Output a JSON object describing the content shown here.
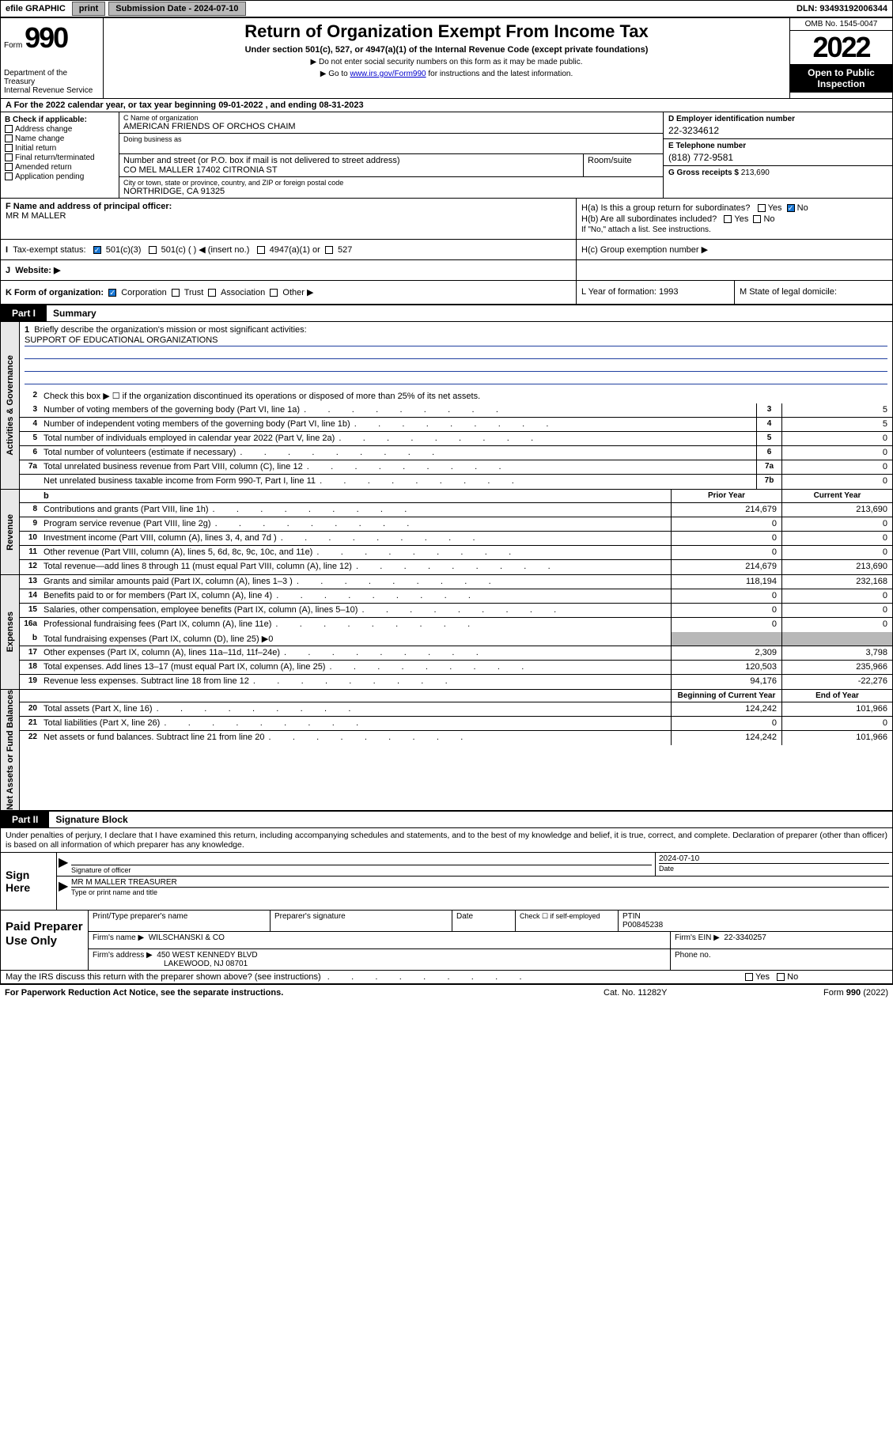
{
  "topbar": {
    "efile": "efile GRAPHIC",
    "print": "print",
    "sub_label": "Submission Date - 2024-07-10",
    "dln": "DLN: 93493192006344"
  },
  "header": {
    "form_word": "Form",
    "form_num": "990",
    "dept": "Department of the Treasury",
    "irs": "Internal Revenue Service",
    "title": "Return of Organization Exempt From Income Tax",
    "subtitle": "Under section 501(c), 527, or 4947(a)(1) of the Internal Revenue Code (except private foundations)",
    "note1": "▶ Do not enter social security numbers on this form as it may be made public.",
    "note2_pre": "▶ Go to ",
    "note2_link": "www.irs.gov/Form990",
    "note2_post": " for instructions and the latest information.",
    "omb": "OMB No. 1545-0047",
    "year": "2022",
    "open": "Open to Public Inspection"
  },
  "a_line": "A For the 2022 calendar year, or tax year beginning 09-01-2022   , and ending 08-31-2023",
  "box_b": {
    "header": "B Check if applicable:",
    "addr": "Address change",
    "name": "Name change",
    "init": "Initial return",
    "final": "Final return/terminated",
    "amend": "Amended return",
    "app": "Application pending"
  },
  "box_c": {
    "name_hint": "C Name of organization",
    "name": "AMERICAN FRIENDS OF ORCHOS CHAIM",
    "dba_hint": "Doing business as",
    "dba": "",
    "addr_hint": "Number and street (or P.O. box if mail is not delivered to street address)",
    "room_hint": "Room/suite",
    "addr": "CO MEL MALLER 17402 CITRONIA ST",
    "city_hint": "City or town, state or province, country, and ZIP or foreign postal code",
    "city": "NORTHRIDGE, CA  91325"
  },
  "box_d": {
    "label": "D Employer identification number",
    "val": "22-3234612"
  },
  "box_e": {
    "label": "E Telephone number",
    "val": "(818) 772-9581"
  },
  "box_g": {
    "label": "G Gross receipts $",
    "val": "213,690"
  },
  "box_f": {
    "label": "F  Name and address of principal officer:",
    "val": "MR M MALLER"
  },
  "box_h": {
    "ha": "H(a)  Is this a group return for subordinates?",
    "hb": "H(b)  Are all subordinates included?",
    "hb_note": "If \"No,\" attach a list. See instructions.",
    "hc": "H(c)  Group exemption number ▶",
    "yes": "Yes",
    "no": "No"
  },
  "box_i": {
    "label": "Tax-exempt status:",
    "c3": "501(c)(3)",
    "c": "501(c) (   ) ◀ (insert no.)",
    "a4947": "4947(a)(1) or",
    "s527": "527"
  },
  "box_j": {
    "label": "Website: ▶",
    "val": ""
  },
  "box_k": {
    "label": "K Form of organization:",
    "corp": "Corporation",
    "trust": "Trust",
    "assoc": "Association",
    "other": "Other ▶"
  },
  "box_l": {
    "label": "L Year of formation: 1993"
  },
  "box_m": {
    "label": "M State of legal domicile:"
  },
  "part1": {
    "num": "Part I",
    "title": "Summary"
  },
  "mission": {
    "q": "Briefly describe the organization's mission or most significant activities:",
    "a": "SUPPORT OF EDUCATIONAL ORGANIZATIONS"
  },
  "line2": "Check this box ▶ ☐  if the organization discontinued its operations or disposed of more than 25% of its net assets.",
  "lines_gov": [
    {
      "n": "3",
      "t": "Number of voting members of the governing body (Part VI, line 1a)",
      "box": "3",
      "v": "5"
    },
    {
      "n": "4",
      "t": "Number of independent voting members of the governing body (Part VI, line 1b)",
      "box": "4",
      "v": "5"
    },
    {
      "n": "5",
      "t": "Total number of individuals employed in calendar year 2022 (Part V, line 2a)",
      "box": "5",
      "v": "0"
    },
    {
      "n": "6",
      "t": "Total number of volunteers (estimate if necessary)",
      "box": "6",
      "v": "0"
    },
    {
      "n": "7a",
      "t": "Total unrelated business revenue from Part VIII, column (C), line 12",
      "box": "7a",
      "v": "0"
    },
    {
      "n": "",
      "t": "Net unrelated business taxable income from Form 990-T, Part I, line 11",
      "box": "7b",
      "v": "0"
    }
  ],
  "col_headers": {
    "b": "b",
    "prior": "Prior Year",
    "current": "Current Year",
    "boy": "Beginning of Current Year",
    "eoy": "End of Year"
  },
  "lines_rev": [
    {
      "n": "8",
      "t": "Contributions and grants (Part VIII, line 1h)",
      "p": "214,679",
      "c": "213,690"
    },
    {
      "n": "9",
      "t": "Program service revenue (Part VIII, line 2g)",
      "p": "0",
      "c": "0"
    },
    {
      "n": "10",
      "t": "Investment income (Part VIII, column (A), lines 3, 4, and 7d )",
      "p": "0",
      "c": "0"
    },
    {
      "n": "11",
      "t": "Other revenue (Part VIII, column (A), lines 5, 6d, 8c, 9c, 10c, and 11e)",
      "p": "0",
      "c": "0"
    },
    {
      "n": "12",
      "t": "Total revenue—add lines 8 through 11 (must equal Part VIII, column (A), line 12)",
      "p": "214,679",
      "c": "213,690"
    }
  ],
  "lines_exp": [
    {
      "n": "13",
      "t": "Grants and similar amounts paid (Part IX, column (A), lines 1–3 )",
      "p": "118,194",
      "c": "232,168"
    },
    {
      "n": "14",
      "t": "Benefits paid to or for members (Part IX, column (A), line 4)",
      "p": "0",
      "c": "0"
    },
    {
      "n": "15",
      "t": "Salaries, other compensation, employee benefits (Part IX, column (A), lines 5–10)",
      "p": "0",
      "c": "0"
    },
    {
      "n": "16a",
      "t": "Professional fundraising fees (Part IX, column (A), line 11e)",
      "p": "0",
      "c": "0"
    }
  ],
  "line16b": {
    "n": "b",
    "t": "Total fundraising expenses (Part IX, column (D), line 25) ▶0"
  },
  "lines_exp2": [
    {
      "n": "17",
      "t": "Other expenses (Part IX, column (A), lines 11a–11d, 11f–24e)",
      "p": "2,309",
      "c": "3,798"
    },
    {
      "n": "18",
      "t": "Total expenses. Add lines 13–17 (must equal Part IX, column (A), line 25)",
      "p": "120,503",
      "c": "235,966"
    },
    {
      "n": "19",
      "t": "Revenue less expenses. Subtract line 18 from line 12",
      "p": "94,176",
      "c": "-22,276"
    }
  ],
  "lines_net": [
    {
      "n": "20",
      "t": "Total assets (Part X, line 16)",
      "p": "124,242",
      "c": "101,966"
    },
    {
      "n": "21",
      "t": "Total liabilities (Part X, line 26)",
      "p": "0",
      "c": "0"
    },
    {
      "n": "22",
      "t": "Net assets or fund balances. Subtract line 21 from line 20",
      "p": "124,242",
      "c": "101,966"
    }
  ],
  "tabs": {
    "gov": "Activities & Governance",
    "rev": "Revenue",
    "exp": "Expenses",
    "net": "Net Assets or Fund Balances"
  },
  "part2": {
    "num": "Part II",
    "title": "Signature Block"
  },
  "decl": "Under penalties of perjury, I declare that I have examined this return, including accompanying schedules and statements, and to the best of my knowledge and belief, it is true, correct, and complete. Declaration of preparer (other than officer) is based on all information of which preparer has any knowledge.",
  "sign": {
    "side": "Sign Here",
    "sig_hint": "Signature of officer",
    "date": "2024-07-10",
    "date_hint": "Date",
    "name": "MR M MALLER  TREASURER",
    "name_hint": "Type or print name and title"
  },
  "prep": {
    "side": "Paid Preparer Use Only",
    "c1": "Print/Type preparer's name",
    "c2": "Preparer's signature",
    "c3": "Date",
    "c4a": "Check ☐ if self-employed",
    "c4b": "PTIN",
    "ptin": "P00845238",
    "firm_label": "Firm's name    ▶",
    "firm": "WILSCHANSKI & CO",
    "ein_label": "Firm's EIN ▶",
    "ein": "22-3340257",
    "addr_label": "Firm's address ▶",
    "addr1": "450 WEST KENNEDY BLVD",
    "addr2": "LAKEWOOD, NJ  08701",
    "phone_label": "Phone no."
  },
  "discuss": {
    "q": "May the IRS discuss this return with the preparer shown above? (see instructions)",
    "yes": "Yes",
    "no": "No"
  },
  "footer": {
    "left": "For Paperwork Reduction Act Notice, see the separate instructions.",
    "mid": "Cat. No. 11282Y",
    "right": "Form 990 (2022)"
  }
}
